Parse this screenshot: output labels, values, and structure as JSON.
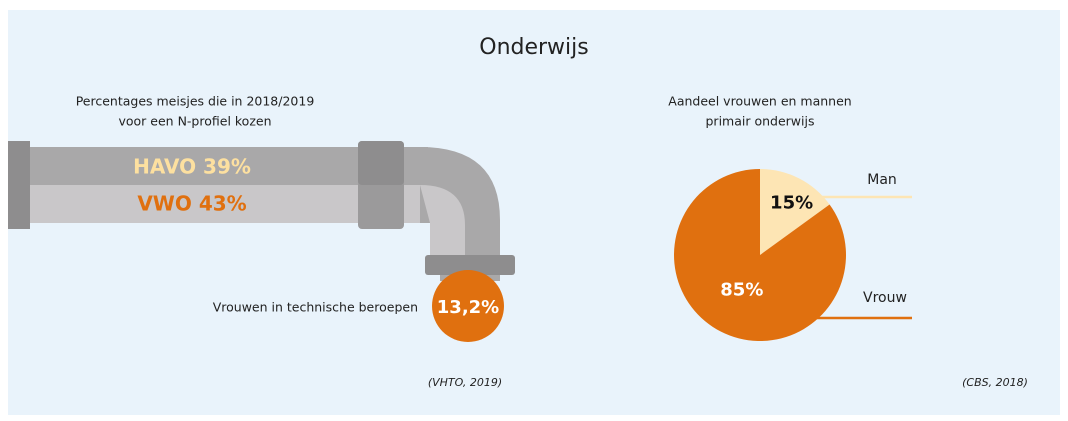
{
  "title": "Onderwijs",
  "pipe": {
    "caption": [
      "Percentages meisjes die in 2018/2019",
      "voor een N-profiel kozen"
    ],
    "labels": [
      "HAVO 39%",
      "VWO 43%"
    ],
    "drop_label": "Vrouwen in technische beroepen",
    "drop_value": "13,2%",
    "source": "(VHTO, 2019)"
  },
  "chart_data": {
    "type": "pie",
    "title": [
      "Aandeel vrouwen en mannen",
      "primair onderwijs"
    ],
    "categories": [
      "Man",
      "Vrouw"
    ],
    "values": [
      15,
      85
    ],
    "value_labels": [
      "15%",
      "85%"
    ],
    "colors": [
      "#fde5b4",
      "#e0700f"
    ],
    "source": "(CBS, 2018)"
  }
}
